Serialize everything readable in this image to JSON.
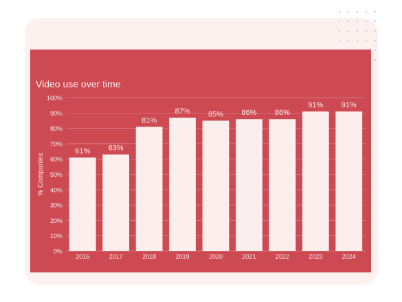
{
  "colors": {
    "panel": "#cd4a53",
    "bar": "#fdeeee",
    "text": "#fdecec",
    "grid": "#dd7f86",
    "card": "#fdf1ef",
    "dots": "#c9c2c2"
  },
  "chart_data": {
    "type": "bar",
    "title": "Video use over time",
    "xlabel": "",
    "ylabel": "% Companies",
    "categories": [
      "2016",
      "2017",
      "2018",
      "2019",
      "2020",
      "2021",
      "2022",
      "2023",
      "2024"
    ],
    "values": [
      61,
      63,
      81,
      87,
      85,
      86,
      86,
      91,
      91
    ],
    "data_labels": [
      "61%",
      "63%",
      "81%",
      "87%",
      "85%",
      "86%",
      "86%",
      "91%",
      "91%"
    ],
    "ylim": [
      0,
      100
    ],
    "yticks": [
      0,
      10,
      20,
      30,
      40,
      50,
      60,
      70,
      80,
      90,
      100
    ],
    "ytick_labels": [
      "0%",
      "10%",
      "20%",
      "30%",
      "40%",
      "50%",
      "60%",
      "70%",
      "80%",
      "90%",
      "100%"
    ],
    "grid": true,
    "legend": "none"
  }
}
